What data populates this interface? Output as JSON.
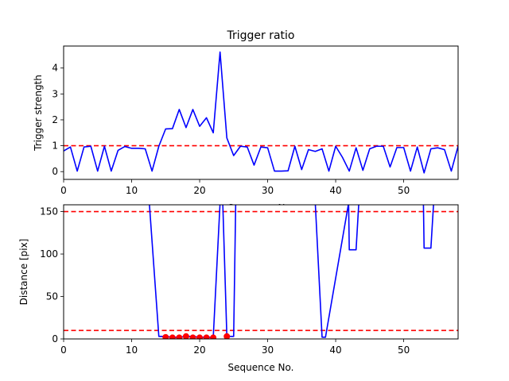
{
  "chart_data": [
    {
      "type": "line",
      "title": "Trigger ratio",
      "xlabel": "Sequence No.",
      "ylabel": "Trigger strength",
      "xlim": [
        0,
        58
      ],
      "ylim": [
        -0.3,
        4.85
      ],
      "xticks": [
        0,
        10,
        20,
        30,
        40,
        50
      ],
      "yticks": [
        0,
        1,
        2,
        3,
        4
      ],
      "series": [
        {
          "color": "#0000ff",
          "style": "solid",
          "x": [
            0,
            1,
            2,
            3,
            4,
            5,
            6,
            7,
            8,
            9,
            10,
            11,
            12,
            13,
            14,
            15,
            16,
            17,
            18,
            19,
            20,
            21,
            22,
            23,
            24,
            25,
            26,
            27,
            28,
            29,
            30,
            31,
            32,
            33,
            34,
            35,
            36,
            37,
            38,
            39,
            40,
            41,
            42,
            43,
            44,
            45,
            46,
            47,
            48,
            49,
            50,
            51,
            52,
            53,
            54,
            55,
            56,
            57,
            58
          ],
          "values": [
            0.8,
            0.95,
            0.02,
            0.95,
            0.98,
            0.02,
            0.98,
            0.02,
            0.82,
            0.97,
            0.9,
            0.9,
            0.88,
            0.02,
            0.98,
            1.65,
            1.66,
            2.4,
            1.7,
            2.4,
            1.75,
            2.08,
            1.5,
            4.62,
            1.3,
            0.62,
            0.98,
            0.95,
            0.25,
            0.95,
            0.92,
            0.02,
            0.02,
            0.03,
            0.98,
            0.08,
            0.85,
            0.78,
            0.88,
            0.02,
            0.98,
            0.55,
            0.02,
            0.92,
            0.05,
            0.88,
            0.98,
            0.98,
            0.18,
            0.93,
            0.93,
            0.02,
            0.95,
            -0.05,
            0.88,
            0.92,
            0.85,
            0.02,
            0.98
          ]
        }
      ],
      "hlines": [
        {
          "y": 1.0,
          "color": "#ff0000",
          "style": "dashed"
        }
      ]
    },
    {
      "type": "line",
      "title": "",
      "xlabel": "Sequence No.",
      "ylabel": "Distance [pix]",
      "xlim": [
        0,
        58
      ],
      "ylim": [
        0,
        158
      ],
      "xticks": [
        0,
        10,
        20,
        30,
        40,
        50
      ],
      "yticks": [
        0,
        50,
        100,
        150
      ],
      "series": [
        {
          "color": "#0000ff",
          "style": "solid",
          "x": [
            12.6,
            14,
            15,
            16,
            17,
            18,
            19,
            20,
            21,
            22,
            23,
            23.4,
            24,
            25,
            25.3,
            37,
            38,
            38.5,
            41.9,
            42,
            43,
            43.4,
            52.9,
            53,
            54,
            54.4
          ],
          "values": [
            160,
            3,
            3,
            2,
            2,
            3,
            3,
            2,
            2,
            2,
            160,
            160,
            3,
            3,
            160,
            160,
            2,
            2,
            160,
            105,
            105,
            160,
            160,
            107,
            107,
            160
          ]
        }
      ],
      "markers": {
        "color": "#ff0000",
        "x": [
          15,
          16,
          17,
          18,
          19,
          20,
          21,
          22,
          24
        ],
        "values": [
          2,
          1.5,
          1.5,
          3,
          1.5,
          1.5,
          1.5,
          1.5,
          3
        ]
      },
      "hlines": [
        {
          "y": 150,
          "color": "#ff0000",
          "style": "dashed"
        },
        {
          "y": 10,
          "color": "#ff0000",
          "style": "dashed"
        }
      ]
    }
  ]
}
